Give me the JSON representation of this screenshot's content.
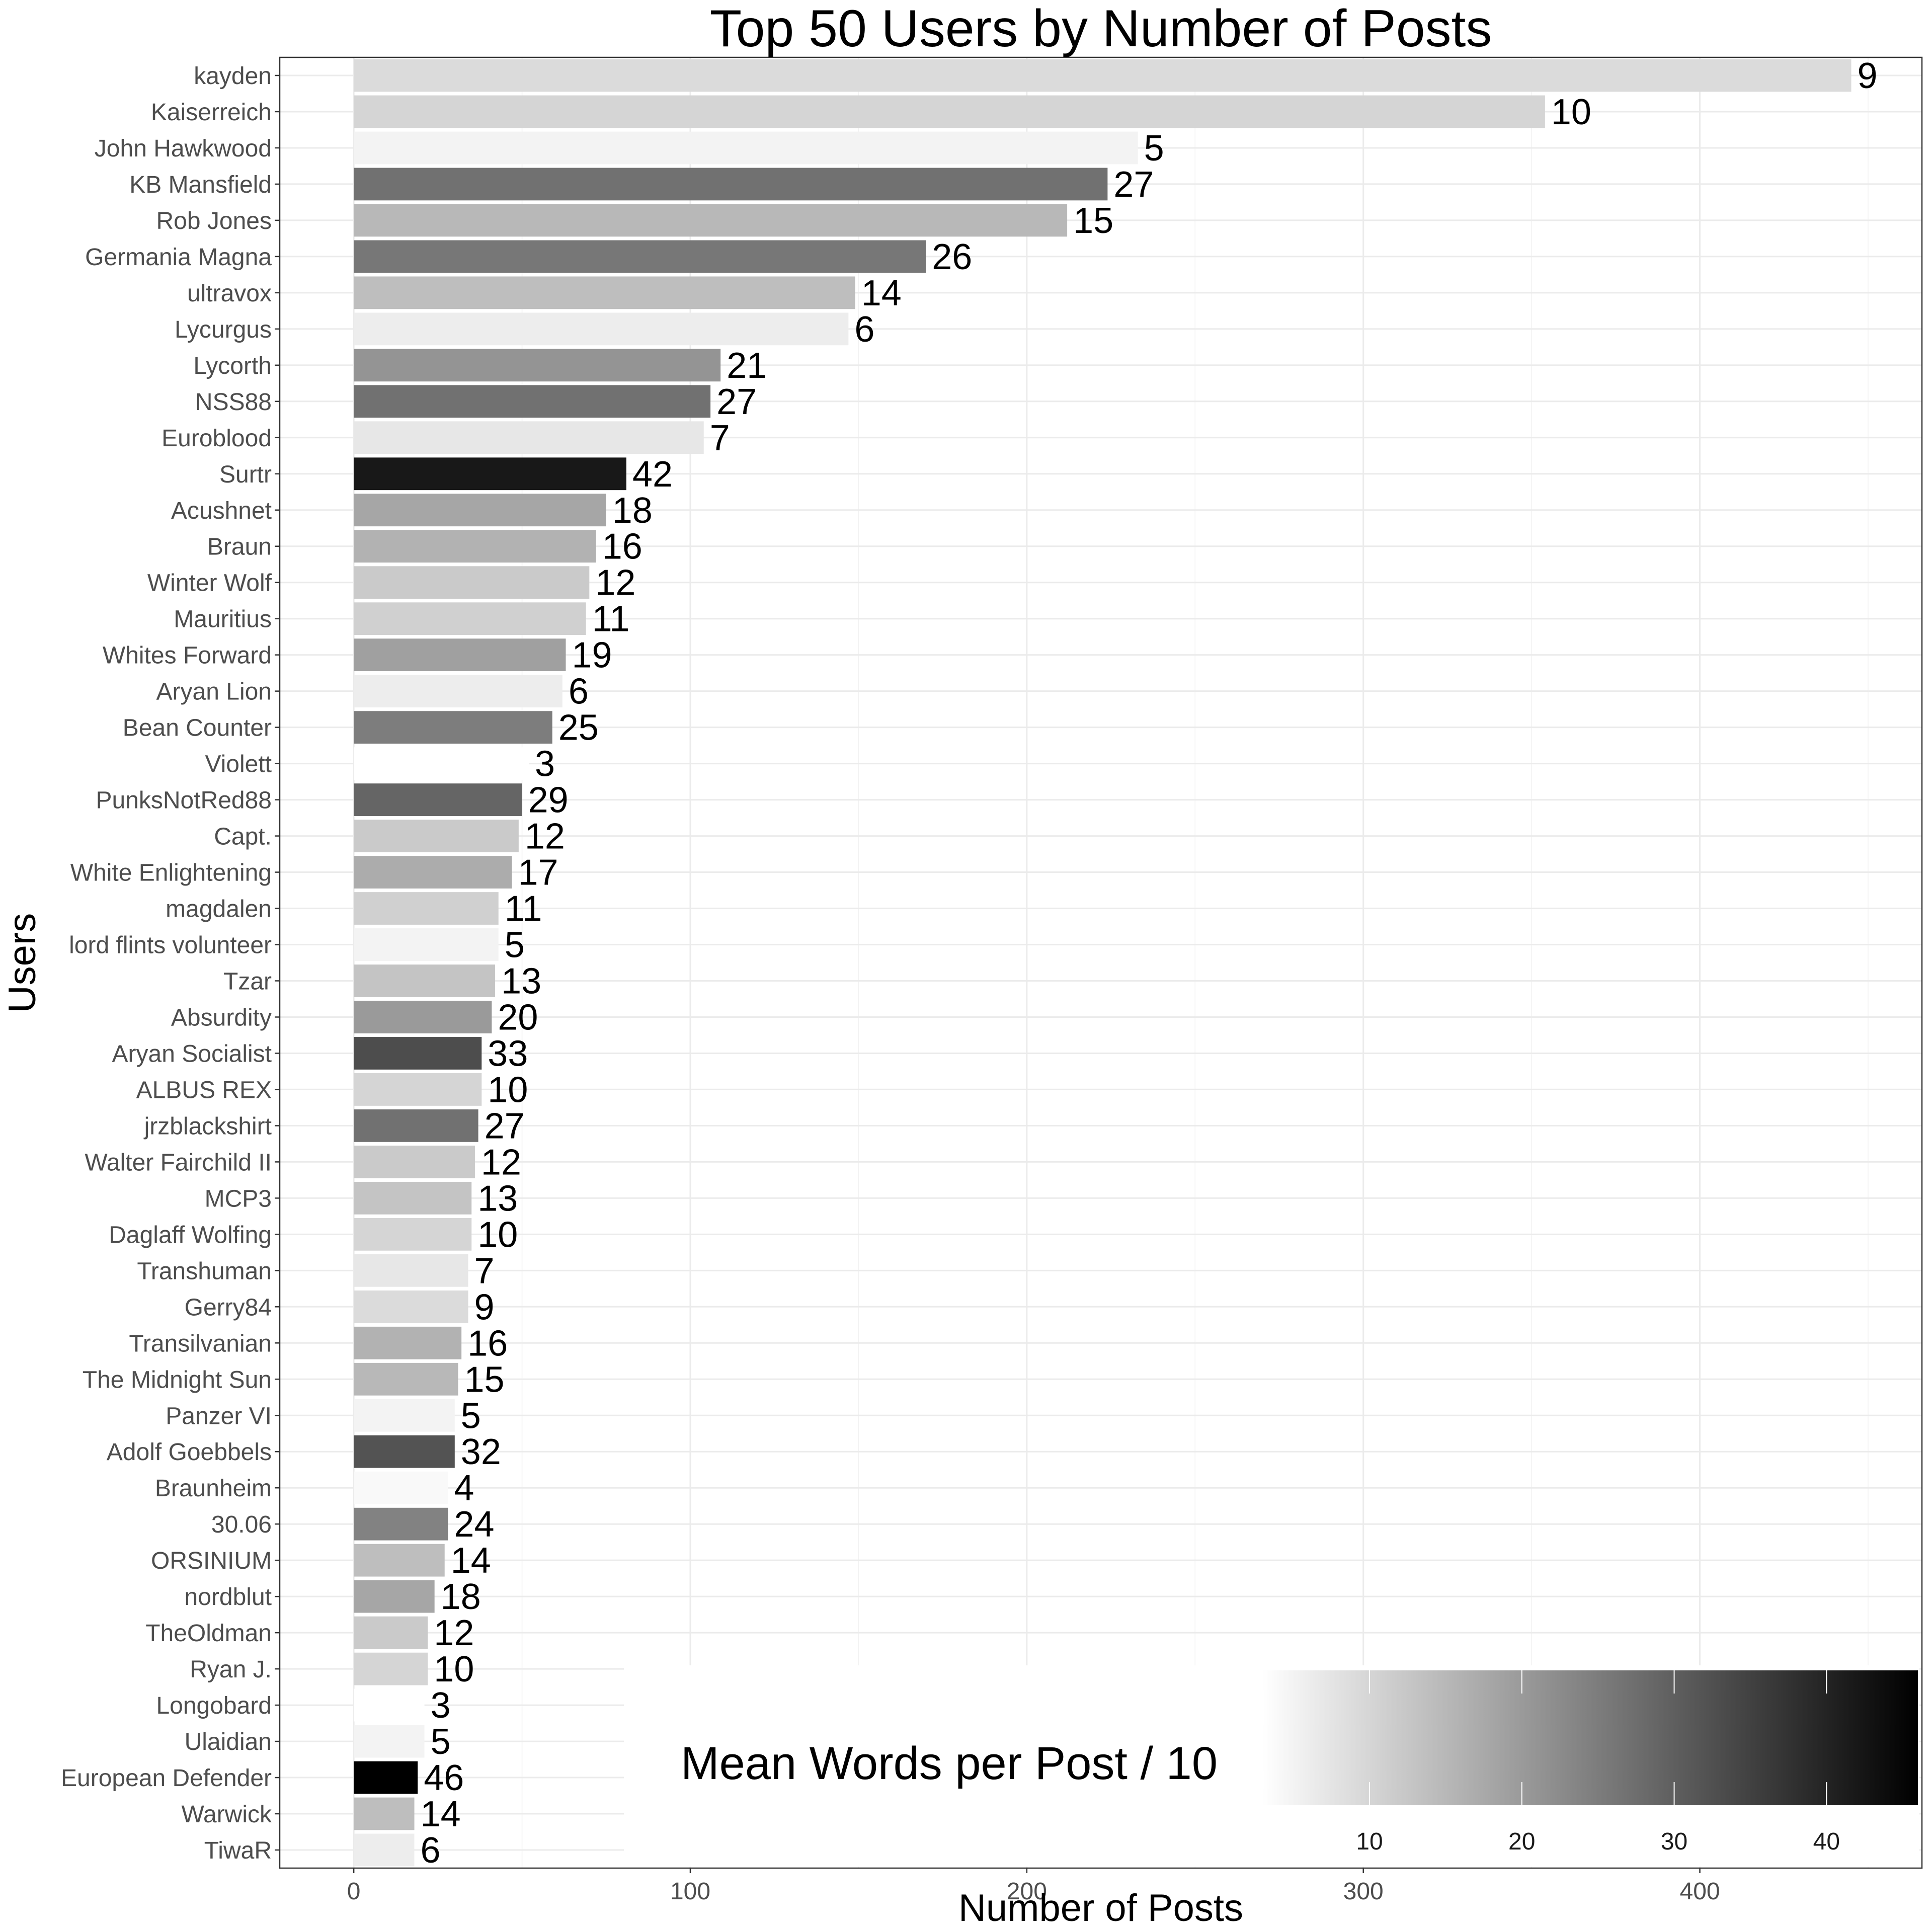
{
  "chart_data": {
    "type": "bar",
    "orientation": "horizontal",
    "title": "Top 50 Users by Number of Posts",
    "xlabel": "Number of Posts",
    "ylabel": "Users",
    "xlim": [
      -22,
      466
    ],
    "xticks": [
      0,
      100,
      200,
      300,
      400
    ],
    "grid": true,
    "legend": {
      "title": "Mean Words per Post / 10",
      "placement": "bottom-right",
      "type": "colorbar",
      "range": [
        3,
        46
      ],
      "ticks": [
        10,
        20,
        30,
        40
      ],
      "low_color": "#ffffff",
      "high_color": "#000000"
    },
    "categories": [
      "kayden",
      "Kaiserreich",
      "John Hawkwood",
      "KB Mansfield",
      "Rob Jones",
      "Germania Magna",
      "ultravox",
      "Lycurgus",
      "Lycorth",
      "NSS88",
      "Euroblood",
      "Surtr",
      "Acushnet",
      "Braun",
      "Winter Wolf",
      "Mauritius",
      "Whites Forward",
      "Aryan Lion",
      "Bean Counter",
      "Violett",
      "PunksNotRed88",
      "Capt.",
      "White Enlightening",
      "magdalen",
      "lord flints volunteer",
      "Tzar",
      "Absurdity",
      "Aryan Socialist",
      "ALBUS REX",
      "jrzblackshirt",
      "Walter Fairchild II",
      "MCP3",
      "Daglaff Wolfing",
      "Transhuman",
      "Gerry84",
      "Transilvanian",
      "The Midnight Sun",
      "Panzer VI",
      "Adolf Goebbels",
      "Braunheim",
      "30.06",
      "ORSINIUM",
      "nordblut",
      "TheOldman",
      "Ryan J.",
      "Longobard",
      "Ulaidian",
      "European Defender",
      "Warwick",
      "TiwaR"
    ],
    "values": [
      445,
      354,
      233,
      224,
      212,
      170,
      149,
      147,
      109,
      106,
      104,
      81,
      75,
      72,
      70,
      69,
      63,
      62,
      59,
      52,
      50,
      49,
      47,
      43,
      43,
      42,
      41,
      38,
      38,
      37,
      36,
      35,
      35,
      34,
      34,
      32,
      31,
      30,
      30,
      28,
      28,
      27,
      24,
      22,
      22,
      21,
      21,
      19,
      18,
      18
    ],
    "mean_words_per_post_div10": [
      9,
      10,
      5,
      27,
      15,
      26,
      14,
      6,
      21,
      27,
      7,
      42,
      18,
      16,
      12,
      11,
      19,
      6,
      25,
      3,
      29,
      12,
      17,
      11,
      5,
      13,
      20,
      33,
      10,
      27,
      12,
      13,
      10,
      7,
      9,
      16,
      15,
      5,
      32,
      4,
      24,
      14,
      18,
      12,
      10,
      3,
      5,
      46,
      14,
      6
    ]
  }
}
